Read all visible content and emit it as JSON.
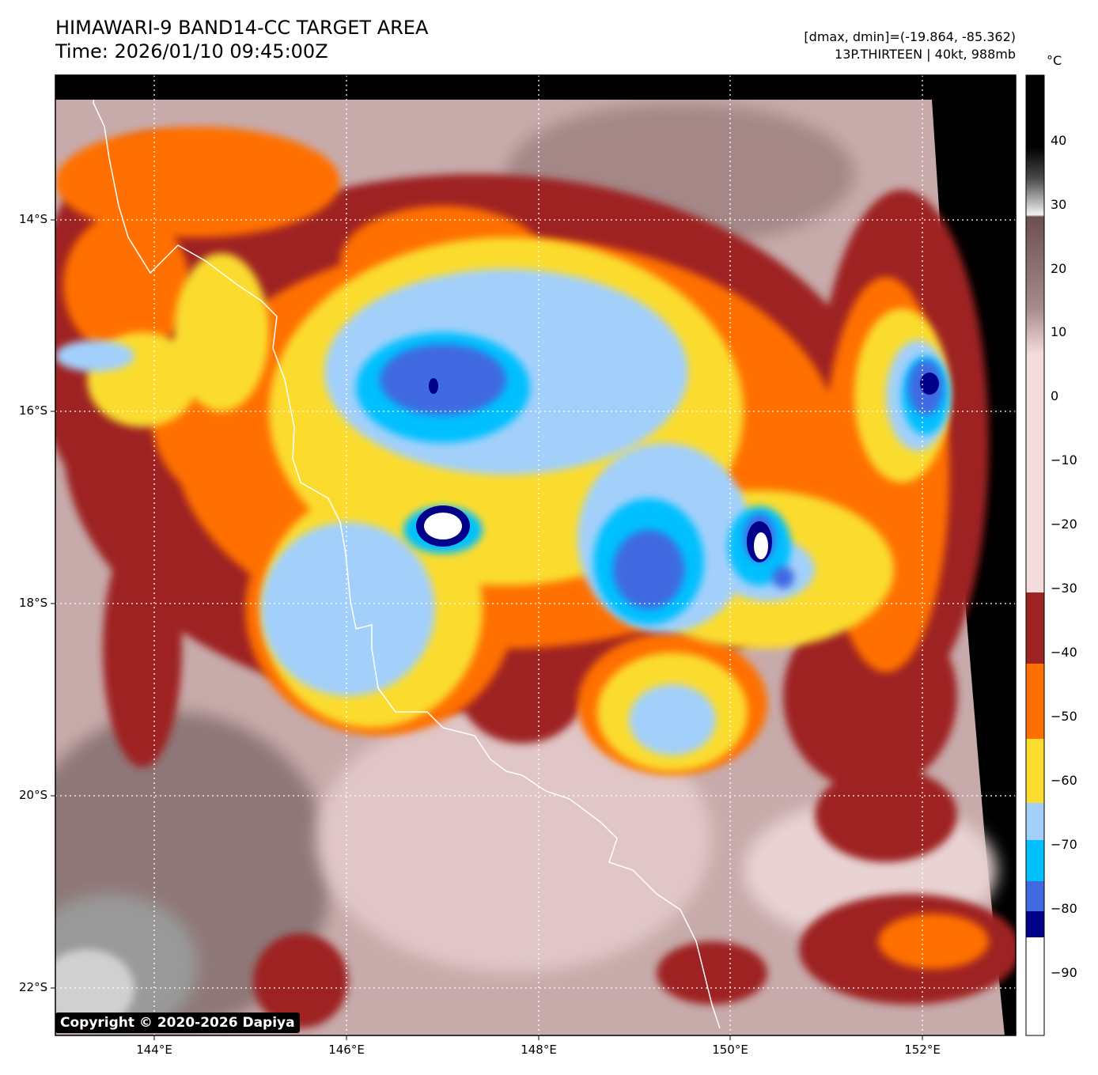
{
  "header": {
    "title_line1": "HIMAWARI-9 BAND14-CC TARGET AREA",
    "title_line2": "Time: 2026/01/10 09:45:00Z",
    "data_range": "[dmax, dmin]=(-19.864, -85.362)",
    "storm_info": "13P.THIRTEEN | 40kt, 988mb"
  },
  "map": {
    "lat_labels": [
      "14°S",
      "16°S",
      "18°S",
      "20°S",
      "22°S"
    ],
    "lon_labels": [
      "144°E",
      "146°E",
      "148°E",
      "150°E",
      "152°E"
    ],
    "copyright": "Copyright © 2020-2026 Dapiya"
  },
  "colorbar": {
    "unit": "°C",
    "tick_labels": [
      "40",
      "30",
      "20",
      "10",
      "0",
      "−10",
      "−20",
      "−30",
      "−40",
      "−50",
      "−60",
      "−70",
      "−80",
      "−90"
    ],
    "ticks": [
      40,
      30,
      20,
      10,
      0,
      -10,
      -20,
      -30,
      -40,
      -50,
      -60,
      -70,
      -80,
      -90
    ],
    "range": [
      -100,
      50
    ],
    "colors": {
      "warm_black": "#000000",
      "gray_white": "#f2f2f2",
      "brown_gray": "#7a5a5a",
      "pink": "#f5dcdc",
      "dark_red": "#9e2424",
      "orange": "#ff7000",
      "yellow": "#fbdc2f",
      "light_blue": "#a3d0fb",
      "cyan_blue": "#00c0ff",
      "royal_blue": "#4169e1",
      "navy": "#00008b",
      "white": "#ffffff"
    }
  }
}
